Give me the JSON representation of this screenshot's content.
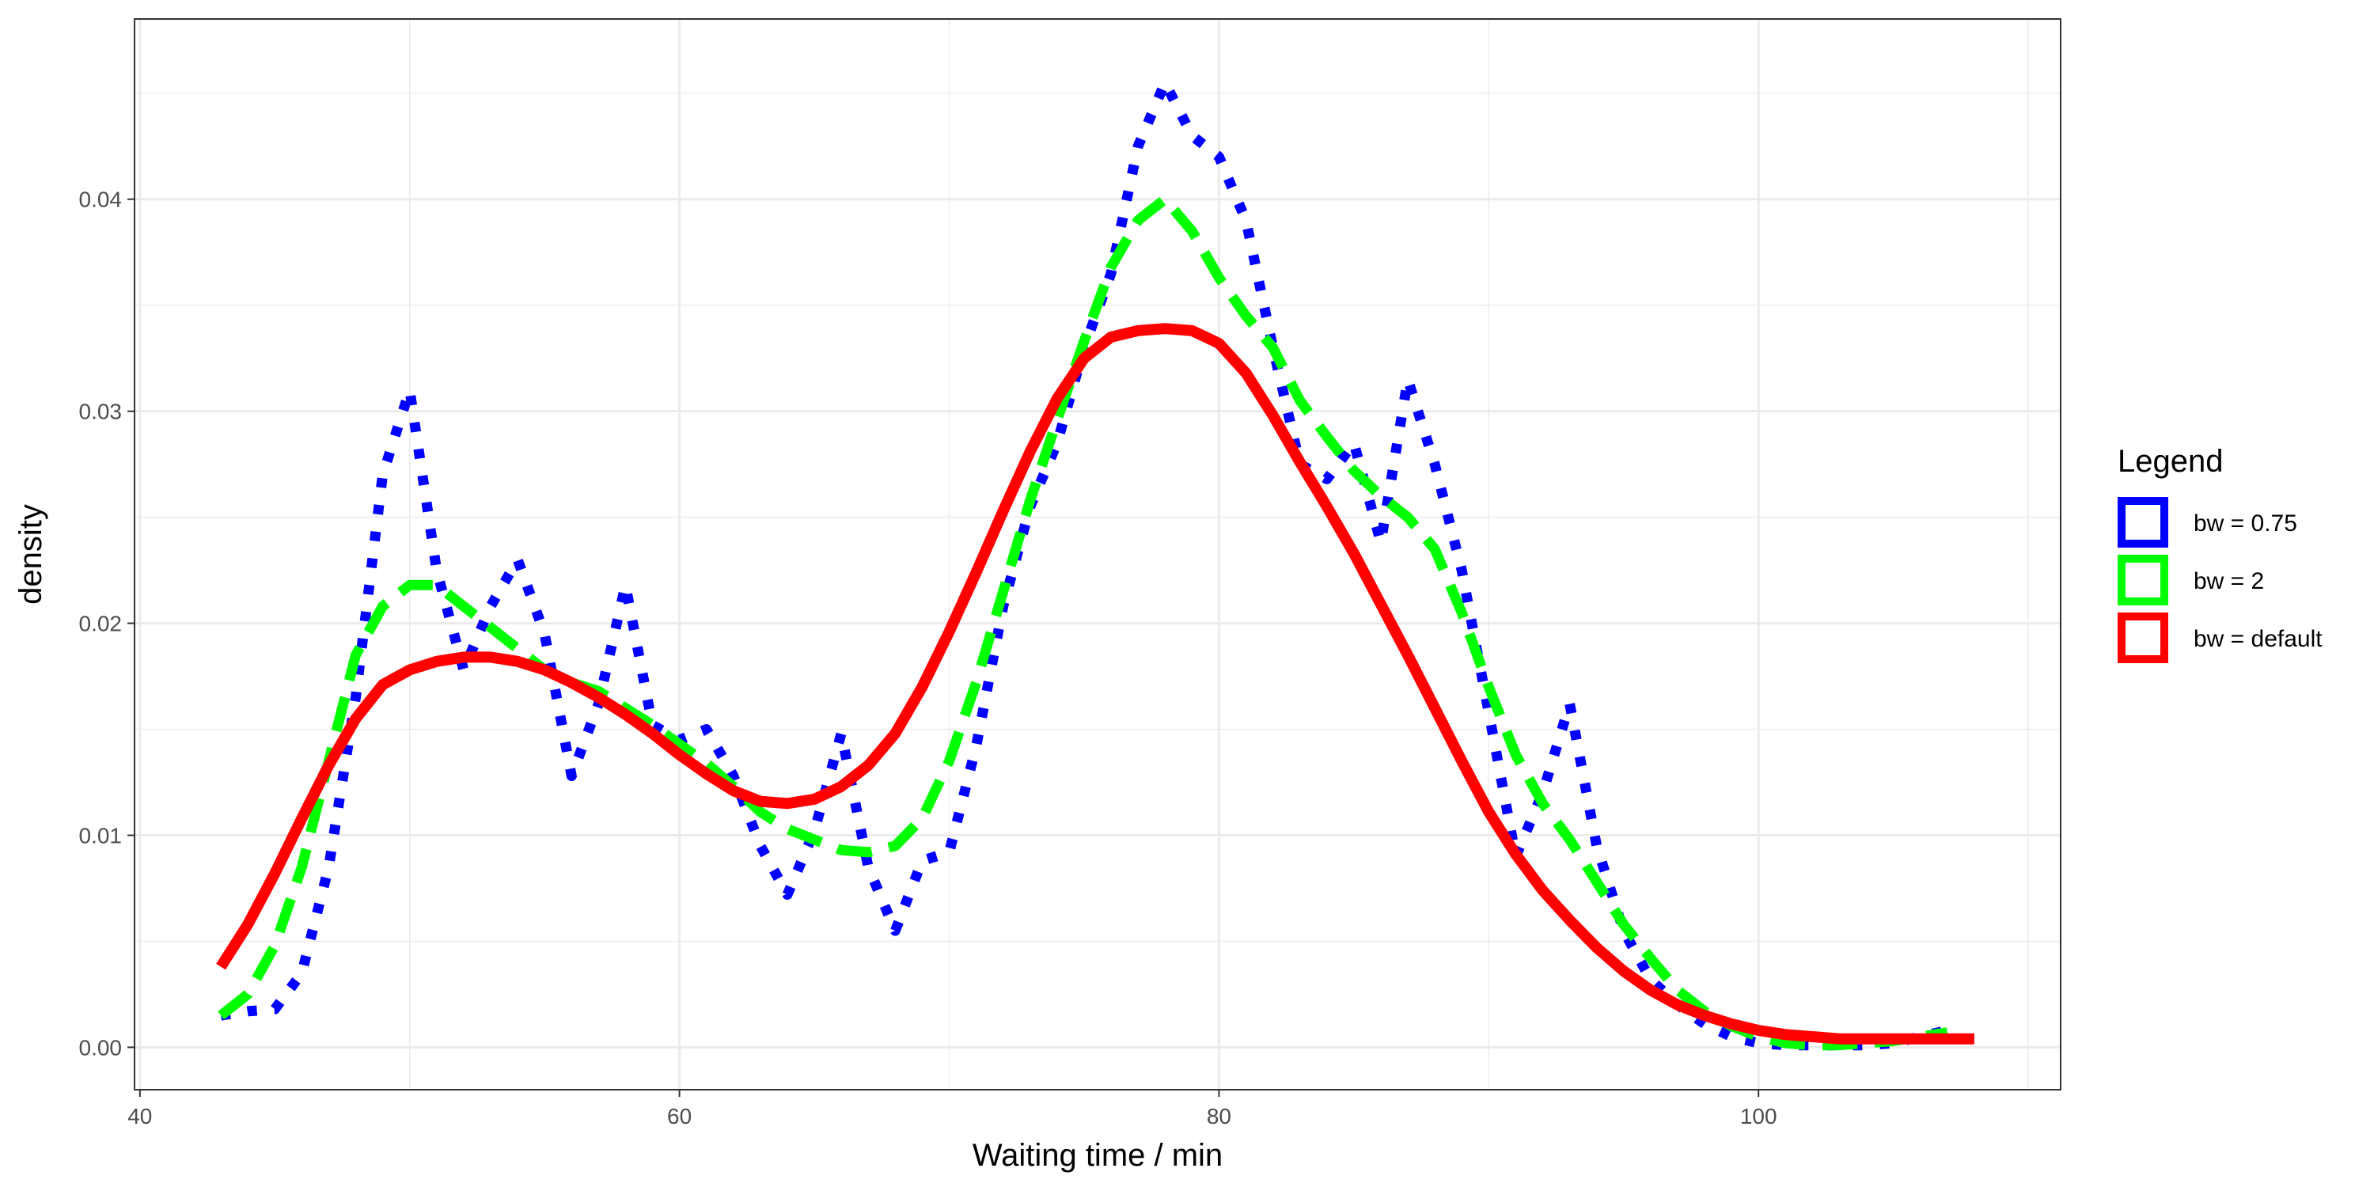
{
  "chart_data": {
    "type": "line",
    "title": "",
    "xlabel": "Waiting time / min",
    "ylabel": "density",
    "xlim": [
      39.8,
      111.2
    ],
    "ylim": [
      -0.002,
      0.0485
    ],
    "x_ticks": [
      40,
      60,
      80,
      100
    ],
    "x_tick_labels": [
      "40",
      "60",
      "80",
      "100"
    ],
    "y_ticks": [
      0.0,
      0.01,
      0.02,
      0.03,
      0.04
    ],
    "y_tick_labels": [
      "0.00",
      "0.01",
      "0.02",
      "0.03",
      "0.04"
    ],
    "grid": true,
    "legend": {
      "title": "Legend",
      "position": "right"
    },
    "series": [
      {
        "name": "bw = 0.75",
        "color": "#0000ff",
        "style": "dotted",
        "x": [
          43,
          44,
          45,
          46,
          47,
          48,
          49,
          50,
          51,
          52,
          53,
          54,
          55,
          56,
          57,
          58,
          59,
          60,
          61,
          62,
          63,
          64,
          65,
          66,
          67,
          68,
          69,
          70,
          71,
          72,
          73,
          74,
          75,
          76,
          77,
          78,
          79,
          80,
          81,
          82,
          83,
          84,
          85,
          86,
          87,
          88,
          89,
          90,
          91,
          92,
          93,
          94,
          95,
          96,
          97,
          98,
          99,
          100,
          101,
          102,
          103,
          104,
          105,
          106,
          107
        ],
        "y": [
          0.0015,
          0.0017,
          0.0018,
          0.0035,
          0.0085,
          0.0165,
          0.027,
          0.031,
          0.0225,
          0.0178,
          0.0208,
          0.023,
          0.0195,
          0.0128,
          0.0162,
          0.0218,
          0.0152,
          0.0145,
          0.015,
          0.0128,
          0.0095,
          0.0072,
          0.0102,
          0.0148,
          0.0085,
          0.0055,
          0.0088,
          0.0092,
          0.0142,
          0.0208,
          0.0255,
          0.0285,
          0.033,
          0.0365,
          0.0425,
          0.0455,
          0.043,
          0.042,
          0.039,
          0.033,
          0.0275,
          0.0268,
          0.0285,
          0.0238,
          0.0315,
          0.0275,
          0.0225,
          0.0158,
          0.009,
          0.012,
          0.0162,
          0.0095,
          0.0055,
          0.0032,
          0.002,
          0.0011,
          0.0005,
          0.0002,
          0.0001,
          0.0001,
          0.0001,
          0.0001,
          0.0002,
          0.0005,
          0.0008
        ]
      },
      {
        "name": "bw = 2",
        "color": "#00ff00",
        "style": "dashed",
        "x": [
          43,
          44,
          45,
          46,
          47,
          48,
          49,
          50,
          51,
          52,
          53,
          54,
          55,
          56,
          57,
          58,
          59,
          60,
          61,
          62,
          63,
          64,
          65,
          66,
          67,
          68,
          69,
          70,
          71,
          72,
          73,
          74,
          75,
          76,
          77,
          78,
          79,
          80,
          81,
          82,
          83,
          84,
          85,
          86,
          87,
          88,
          89,
          90,
          91,
          92,
          93,
          94,
          95,
          96,
          97,
          98,
          99,
          100,
          101,
          102,
          103,
          104,
          105,
          106,
          107
        ],
        "y": [
          0.0015,
          0.0025,
          0.0048,
          0.0085,
          0.0135,
          0.0185,
          0.0208,
          0.0218,
          0.0218,
          0.0208,
          0.0198,
          0.0188,
          0.0178,
          0.0172,
          0.0168,
          0.016,
          0.0152,
          0.0143,
          0.0134,
          0.0123,
          0.0111,
          0.0103,
          0.0098,
          0.0093,
          0.0092,
          0.0095,
          0.0108,
          0.0135,
          0.0172,
          0.0215,
          0.0258,
          0.0296,
          0.0333,
          0.0368,
          0.039,
          0.04,
          0.0385,
          0.0363,
          0.0345,
          0.033,
          0.0305,
          0.0288,
          0.0272,
          0.026,
          0.025,
          0.0235,
          0.0205,
          0.017,
          0.0138,
          0.0115,
          0.0098,
          0.0078,
          0.0058,
          0.0042,
          0.0027,
          0.0017,
          0.001,
          0.0005,
          0.0002,
          0.0001,
          0.0001,
          0.0002,
          0.0003,
          0.0005,
          0.0007
        ]
      },
      {
        "name": "bw = default",
        "color": "#ff0000",
        "style": "solid",
        "x": [
          43,
          44,
          45,
          46,
          47,
          48,
          49,
          50,
          51,
          52,
          53,
          54,
          55,
          56,
          57,
          58,
          59,
          60,
          61,
          62,
          63,
          64,
          65,
          66,
          67,
          68,
          69,
          70,
          71,
          72,
          73,
          74,
          75,
          76,
          77,
          78,
          79,
          80,
          81,
          82,
          83,
          84,
          85,
          86,
          87,
          88,
          89,
          90,
          91,
          92,
          93,
          94,
          95,
          96,
          97,
          98,
          99,
          100,
          101,
          102,
          103,
          104,
          105,
          106,
          107,
          108
        ],
        "y": [
          0.0038,
          0.0058,
          0.0082,
          0.0108,
          0.0133,
          0.0155,
          0.0171,
          0.0178,
          0.0182,
          0.0184,
          0.0184,
          0.0182,
          0.0178,
          0.0172,
          0.0165,
          0.0157,
          0.0148,
          0.0138,
          0.0129,
          0.0121,
          0.0116,
          0.0115,
          0.0117,
          0.0123,
          0.0133,
          0.0148,
          0.017,
          0.0196,
          0.0224,
          0.0253,
          0.0281,
          0.0306,
          0.0325,
          0.0335,
          0.0338,
          0.0339,
          0.0338,
          0.0332,
          0.0318,
          0.0298,
          0.0276,
          0.0255,
          0.0233,
          0.0209,
          0.0185,
          0.016,
          0.0135,
          0.0111,
          0.0091,
          0.0074,
          0.006,
          0.0047,
          0.0036,
          0.0027,
          0.002,
          0.0015,
          0.0011,
          0.0008,
          0.0006,
          0.0005,
          0.0004,
          0.0004,
          0.0004,
          0.0004,
          0.0004,
          0.0004
        ]
      }
    ]
  }
}
